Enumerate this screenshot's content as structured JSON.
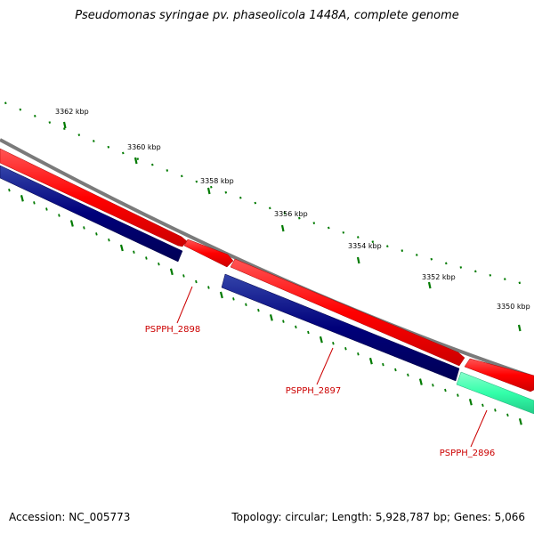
{
  "title": "Pseudomonas syringae pv. phaseolicola 1448A, complete genome",
  "footer": {
    "accession": "Accession: NC_005773",
    "summary": "Topology: circular; Length: 5,928,787 bp; Genes: 5,066"
  },
  "colors": {
    "backbone": "#808080",
    "forward_gene": "#ff0000",
    "reverse_gene": "#00007a",
    "rna_gene": "#33ffaa",
    "ticks": "#007a00",
    "gene_label": "#cc0000"
  },
  "ruler": {
    "unit": "kbp",
    "labels": [
      "3362 kbp",
      "3360 kbp",
      "3358 kbp",
      "3356 kbp",
      "3354 kbp",
      "3352 kbp",
      "3350 kbp"
    ]
  },
  "genes": [
    {
      "name": "PSPPH_2898",
      "label": "PSPPH_2898"
    },
    {
      "name": "PSPPH_2897",
      "label": "PSPPH_2897"
    },
    {
      "name": "PSPPH_2896",
      "label": "PSPPH_2896"
    }
  ]
}
